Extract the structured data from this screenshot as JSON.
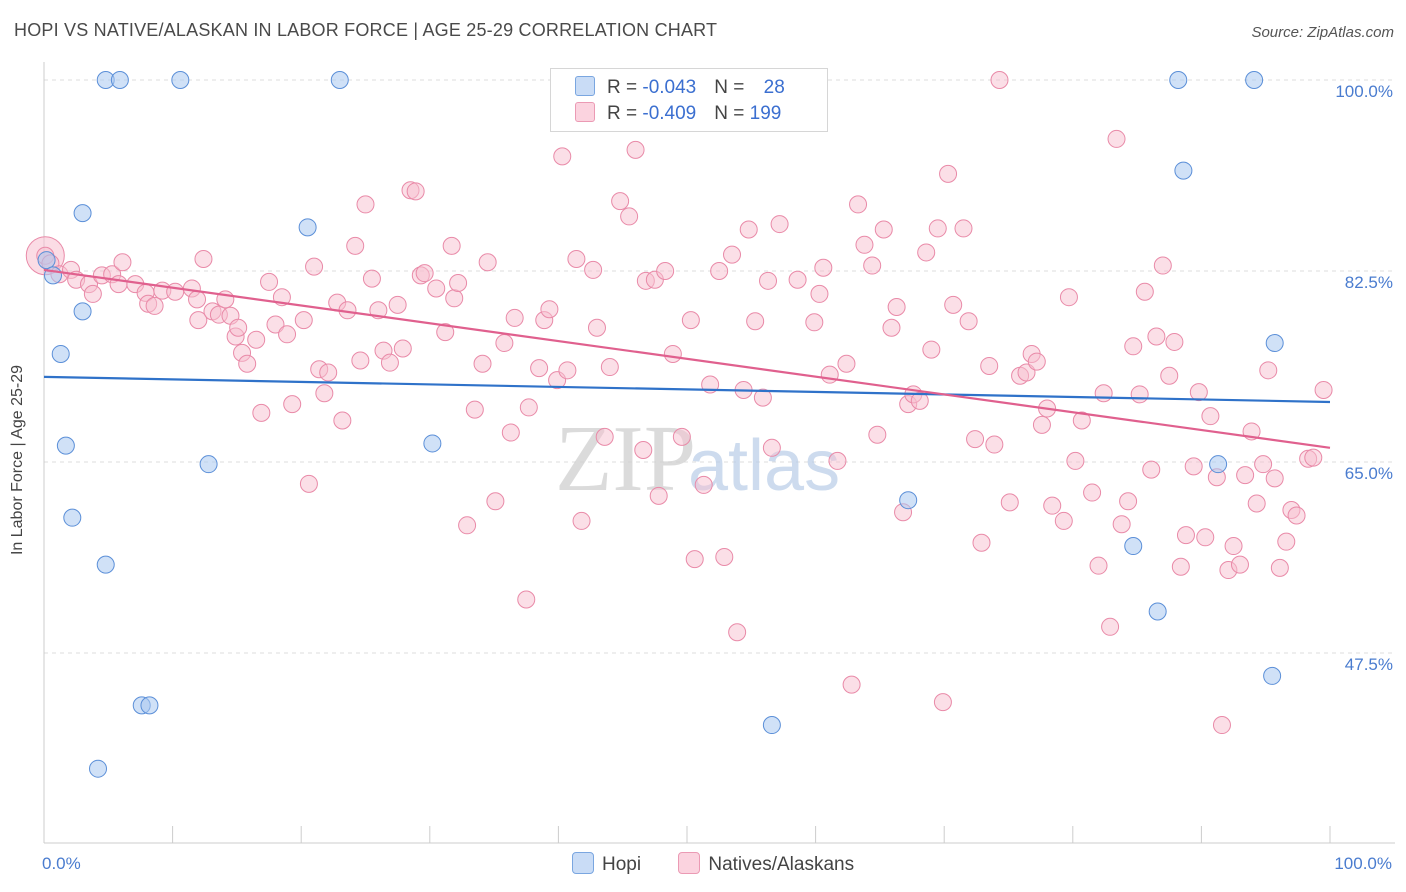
{
  "title": "HOPI VS NATIVE/ALASKAN IN LABOR FORCE | AGE 25-29 CORRELATION CHART",
  "source": "Source: ZipAtlas.com",
  "watermark": {
    "zip": "ZIP",
    "atlas": "atlas"
  },
  "colors": {
    "hopi_fill": "#aac8f0",
    "hopi_stroke": "#5b8fd8",
    "hopi_line": "#2f72c9",
    "native_fill": "#f7bfd0",
    "native_stroke": "#e98aa8",
    "native_line": "#e0608e",
    "tick_label": "#4a7ccf",
    "grid": "#dddddd"
  },
  "legend": {
    "hopi": {
      "r_label": "R = ",
      "r_value": "-0.043",
      "n_label": "N = ",
      "n_value": "28"
    },
    "native": {
      "r_label": "R = ",
      "r_value": "-0.409",
      "n_label": "N = ",
      "n_value": "199"
    }
  },
  "bottom_legend": {
    "hopi": "Hopi",
    "native": "Natives/Alaskans"
  },
  "chart_data": {
    "type": "scatter",
    "xlabel": "",
    "ylabel": "In Labor Force | Age 25-29",
    "xlim": [
      0,
      100
    ],
    "ylim": [
      32,
      102
    ],
    "x_tick_labels": [
      {
        "value": 0,
        "label": "0.0%"
      },
      {
        "value": 100,
        "label": "100.0%"
      }
    ],
    "y_tick_labels": [
      {
        "value": 100,
        "label": "100.0%"
      },
      {
        "value": 82.5,
        "label": "82.5%"
      },
      {
        "value": 65,
        "label": "65.0%"
      },
      {
        "value": 47.5,
        "label": "47.5%"
      }
    ],
    "y_gridlines": [
      100,
      82.5,
      65,
      47.5
    ],
    "series": [
      {
        "name": "Hopi",
        "trend": {
          "x": [
            0,
            100
          ],
          "y": [
            72.8,
            70.5
          ]
        },
        "points": [
          [
            0.2,
            83.5
          ],
          [
            0.7,
            82.1
          ],
          [
            3.0,
            87.8
          ],
          [
            3.0,
            78.8
          ],
          [
            1.3,
            74.9
          ],
          [
            1.7,
            66.5
          ],
          [
            2.2,
            59.9
          ],
          [
            4.8,
            55.6
          ],
          [
            4.8,
            100
          ],
          [
            5.9,
            100
          ],
          [
            10.6,
            100
          ],
          [
            23.0,
            100
          ],
          [
            4.2,
            36.9
          ],
          [
            7.6,
            42.7
          ],
          [
            8.2,
            42.7
          ],
          [
            12.8,
            64.8
          ],
          [
            20.5,
            86.5
          ],
          [
            30.2,
            66.7
          ],
          [
            56.6,
            40.9
          ],
          [
            67.2,
            61.5
          ],
          [
            84.7,
            57.3
          ],
          [
            86.6,
            51.3
          ],
          [
            88.2,
            100
          ],
          [
            88.6,
            91.7
          ],
          [
            91.3,
            64.8
          ],
          [
            94.1,
            100
          ],
          [
            95.5,
            45.4
          ],
          [
            95.7,
            75.9
          ]
        ]
      },
      {
        "name": "Natives/Alaskans",
        "trend": {
          "x": [
            0,
            100
          ],
          "y": [
            82.6,
            66.3
          ]
        },
        "points": [
          [
            0.1,
            83.9
          ],
          [
            0.5,
            83.2
          ],
          [
            1.2,
            82.2
          ],
          [
            2.1,
            82.6
          ],
          [
            2.5,
            81.7
          ],
          [
            3.5,
            81.3
          ],
          [
            3.8,
            80.4
          ],
          [
            4.5,
            82.1
          ],
          [
            5.3,
            82.2
          ],
          [
            6.1,
            83.3
          ],
          [
            5.8,
            81.3
          ],
          [
            7.1,
            81.3
          ],
          [
            7.9,
            80.5
          ],
          [
            8.1,
            79.5
          ],
          [
            8.6,
            79.3
          ],
          [
            9.2,
            80.7
          ],
          [
            10.2,
            80.6
          ],
          [
            11.5,
            80.9
          ],
          [
            11.9,
            79.9
          ],
          [
            12.0,
            78.0
          ],
          [
            12.4,
            83.6
          ],
          [
            13.1,
            78.8
          ],
          [
            13.6,
            78.5
          ],
          [
            14.1,
            79.9
          ],
          [
            14.5,
            78.4
          ],
          [
            14.9,
            76.5
          ],
          [
            15.1,
            77.3
          ],
          [
            15.4,
            75.0
          ],
          [
            15.8,
            74.0
          ],
          [
            16.5,
            76.2
          ],
          [
            16.9,
            69.5
          ],
          [
            17.5,
            81.5
          ],
          [
            18.0,
            77.6
          ],
          [
            18.5,
            80.1
          ],
          [
            18.9,
            76.7
          ],
          [
            19.3,
            70.3
          ],
          [
            20.2,
            78.0
          ],
          [
            20.6,
            63.0
          ],
          [
            21.0,
            82.9
          ],
          [
            21.4,
            73.5
          ],
          [
            21.8,
            71.3
          ],
          [
            22.1,
            73.2
          ],
          [
            22.8,
            79.6
          ],
          [
            23.2,
            68.8
          ],
          [
            23.6,
            78.9
          ],
          [
            24.2,
            84.8
          ],
          [
            24.6,
            74.3
          ],
          [
            25.0,
            88.6
          ],
          [
            25.5,
            81.8
          ],
          [
            26.0,
            78.9
          ],
          [
            26.4,
            75.2
          ],
          [
            26.9,
            74.1
          ],
          [
            27.5,
            79.4
          ],
          [
            27.9,
            75.4
          ],
          [
            28.5,
            89.9
          ],
          [
            28.9,
            89.8
          ],
          [
            29.3,
            82.1
          ],
          [
            29.6,
            82.3
          ],
          [
            30.5,
            80.9
          ],
          [
            31.2,
            76.9
          ],
          [
            31.7,
            84.8
          ],
          [
            31.9,
            80.0
          ],
          [
            32.2,
            81.4
          ],
          [
            32.9,
            59.2
          ],
          [
            33.5,
            69.8
          ],
          [
            34.1,
            74.0
          ],
          [
            34.5,
            83.3
          ],
          [
            35.1,
            61.4
          ],
          [
            35.8,
            75.9
          ],
          [
            36.3,
            67.7
          ],
          [
            36.6,
            78.2
          ],
          [
            37.5,
            52.4
          ],
          [
            37.7,
            70.0
          ],
          [
            38.5,
            73.6
          ],
          [
            38.9,
            78.0
          ],
          [
            39.3,
            79.0
          ],
          [
            39.9,
            72.5
          ],
          [
            40.3,
            93.0
          ],
          [
            40.7,
            73.4
          ],
          [
            41.4,
            83.6
          ],
          [
            41.8,
            59.6
          ],
          [
            42.7,
            82.6
          ],
          [
            43.0,
            77.3
          ],
          [
            43.6,
            67.3
          ],
          [
            44.0,
            73.7
          ],
          [
            44.8,
            88.9
          ],
          [
            45.5,
            87.5
          ],
          [
            46.0,
            93.6
          ],
          [
            46.8,
            81.6
          ],
          [
            46.6,
            66.1
          ],
          [
            47.5,
            81.7
          ],
          [
            47.8,
            61.9
          ],
          [
            48.3,
            82.5
          ],
          [
            48.9,
            74.9
          ],
          [
            49.6,
            67.3
          ],
          [
            50.3,
            78.0
          ],
          [
            50.6,
            56.1
          ],
          [
            51.3,
            62.9
          ],
          [
            51.8,
            72.1
          ],
          [
            52.5,
            82.5
          ],
          [
            52.9,
            56.3
          ],
          [
            53.5,
            84.0
          ],
          [
            53.9,
            49.4
          ],
          [
            54.4,
            71.6
          ],
          [
            54.8,
            86.3
          ],
          [
            55.3,
            77.9
          ],
          [
            55.9,
            70.9
          ],
          [
            56.3,
            81.6
          ],
          [
            56.6,
            66.3
          ],
          [
            57.2,
            86.8
          ],
          [
            57.9,
            100
          ],
          [
            58.6,
            81.7
          ],
          [
            59.2,
            100
          ],
          [
            59.9,
            77.8
          ],
          [
            60.3,
            80.4
          ],
          [
            60.6,
            82.8
          ],
          [
            61.1,
            73.0
          ],
          [
            61.7,
            65.1
          ],
          [
            62.4,
            74.0
          ],
          [
            62.8,
            44.6
          ],
          [
            63.3,
            88.6
          ],
          [
            63.8,
            84.9
          ],
          [
            64.4,
            83.0
          ],
          [
            64.8,
            67.5
          ],
          [
            65.3,
            86.3
          ],
          [
            65.9,
            77.3
          ],
          [
            66.3,
            79.2
          ],
          [
            66.8,
            60.4
          ],
          [
            67.2,
            70.3
          ],
          [
            67.6,
            71.2
          ],
          [
            68.1,
            70.6
          ],
          [
            68.6,
            84.2
          ],
          [
            69.0,
            75.3
          ],
          [
            69.5,
            86.4
          ],
          [
            69.9,
            43.0
          ],
          [
            70.3,
            91.4
          ],
          [
            70.7,
            79.4
          ],
          [
            71.5,
            86.4
          ],
          [
            71.9,
            77.9
          ],
          [
            72.4,
            67.1
          ],
          [
            72.9,
            57.6
          ],
          [
            73.5,
            73.8
          ],
          [
            73.9,
            66.6
          ],
          [
            74.3,
            100
          ],
          [
            75.1,
            61.3
          ],
          [
            75.9,
            72.9
          ],
          [
            76.4,
            73.2
          ],
          [
            76.8,
            74.9
          ],
          [
            77.2,
            74.2
          ],
          [
            77.6,
            68.4
          ],
          [
            78.0,
            69.9
          ],
          [
            78.4,
            61.0
          ],
          [
            79.3,
            59.6
          ],
          [
            79.7,
            80.1
          ],
          [
            80.2,
            65.1
          ],
          [
            80.7,
            68.8
          ],
          [
            81.5,
            62.2
          ],
          [
            82.0,
            55.5
          ],
          [
            82.4,
            71.3
          ],
          [
            82.9,
            49.9
          ],
          [
            83.4,
            94.6
          ],
          [
            83.8,
            59.3
          ],
          [
            84.3,
            61.4
          ],
          [
            84.7,
            75.6
          ],
          [
            85.2,
            71.2
          ],
          [
            85.6,
            80.6
          ],
          [
            86.1,
            64.3
          ],
          [
            86.5,
            76.5
          ],
          [
            87.0,
            83.0
          ],
          [
            87.5,
            72.9
          ],
          [
            87.9,
            76.0
          ],
          [
            88.4,
            55.4
          ],
          [
            88.8,
            58.3
          ],
          [
            89.4,
            64.6
          ],
          [
            89.8,
            71.4
          ],
          [
            90.3,
            58.1
          ],
          [
            90.7,
            69.2
          ],
          [
            91.2,
            63.6
          ],
          [
            91.6,
            40.9
          ],
          [
            92.1,
            55.1
          ],
          [
            92.5,
            57.3
          ],
          [
            93.0,
            55.6
          ],
          [
            93.4,
            63.8
          ],
          [
            93.9,
            67.8
          ],
          [
            94.3,
            61.2
          ],
          [
            94.8,
            64.8
          ],
          [
            95.2,
            73.4
          ],
          [
            95.7,
            63.5
          ],
          [
            96.1,
            55.3
          ],
          [
            96.6,
            57.7
          ],
          [
            97.0,
            60.6
          ],
          [
            97.4,
            60.1
          ],
          [
            98.3,
            65.3
          ],
          [
            98.7,
            65.4
          ],
          [
            99.5,
            71.6
          ]
        ]
      }
    ]
  }
}
